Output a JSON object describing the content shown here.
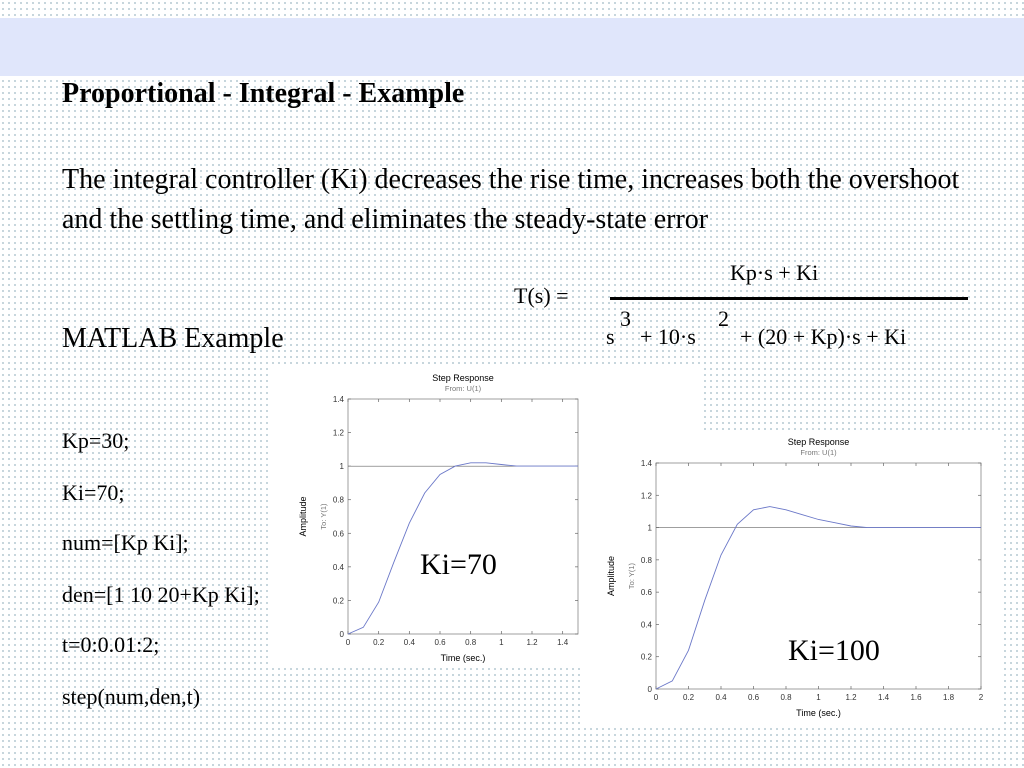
{
  "slide": {
    "title": "Proportional - Integral - Example",
    "description": "The integral controller (Ki) decreases the rise time, increases both the overshoot and the settling time, and eliminates the steady-state error",
    "subheading": "MATLAB Example",
    "code_lines": [
      "Kp=30;",
      "Ki=70;",
      "num=[Kp Ki];",
      "den=[1 10 20+Kp Ki];",
      "t=0:0.01:2;",
      "step(num,den,t)"
    ]
  },
  "formula": {
    "lhs": "T(s) =",
    "numerator": "Kp·s + Ki",
    "den_s": "s",
    "den_exp1": "3",
    "den_mid": "+ 10·s",
    "den_exp2": "2",
    "den_tail": "+ (20 + Kp)·s + Ki"
  },
  "chart_data": [
    {
      "type": "line",
      "title": "Step Response",
      "subtitle": "From: U(1)",
      "xlabel": "Time (sec.)",
      "ylabel": "Amplitude",
      "ylabel2": "To: Y(1)",
      "xlim": [
        0,
        1.5
      ],
      "ylim": [
        0,
        1.4
      ],
      "xticks": [
        "0",
        "0.2",
        "0.4",
        "0.6",
        "0.8",
        "1",
        "1.2",
        "1.4"
      ],
      "yticks": [
        "0",
        "0.2",
        "0.4",
        "0.6",
        "0.8",
        "1",
        "1.2",
        "1.4"
      ],
      "reference": 1,
      "series": [
        {
          "x": [
            0,
            0.1,
            0.2,
            0.3,
            0.4,
            0.5,
            0.6,
            0.7,
            0.8,
            0.9,
            1.0,
            1.1,
            1.2,
            1.3,
            1.4,
            1.5
          ],
          "y": [
            0,
            0.04,
            0.19,
            0.43,
            0.66,
            0.84,
            0.95,
            1.0,
            1.02,
            1.02,
            1.01,
            1.0,
            1.0,
            1.0,
            1.0,
            1.0
          ]
        }
      ],
      "annotation": "Ki=70",
      "grid": false
    },
    {
      "type": "line",
      "title": "Step Response",
      "subtitle": "From: U(1)",
      "xlabel": "Time (sec.)",
      "ylabel": "Amplitude",
      "ylabel2": "To: Y(1)",
      "xlim": [
        0,
        2
      ],
      "ylim": [
        0,
        1.4
      ],
      "xticks": [
        "0",
        "0.2",
        "0.4",
        "0.6",
        "0.8",
        "1",
        "1.2",
        "1.4",
        "1.6",
        "1.8",
        "2"
      ],
      "yticks": [
        "0",
        "0.2",
        "0.4",
        "0.6",
        "0.8",
        "1",
        "1.2",
        "1.4"
      ],
      "reference": 1,
      "series": [
        {
          "x": [
            0,
            0.1,
            0.2,
            0.3,
            0.4,
            0.5,
            0.6,
            0.7,
            0.8,
            0.9,
            1.0,
            1.1,
            1.2,
            1.3,
            1.4,
            1.5,
            1.6,
            1.7,
            1.8,
            1.9,
            2.0
          ],
          "y": [
            0,
            0.05,
            0.24,
            0.55,
            0.83,
            1.02,
            1.11,
            1.13,
            1.11,
            1.08,
            1.05,
            1.03,
            1.01,
            1.0,
            1.0,
            1.0,
            1.0,
            1.0,
            1.0,
            1.0,
            1.0
          ]
        }
      ],
      "annotation": "Ki=100",
      "grid": false
    }
  ]
}
